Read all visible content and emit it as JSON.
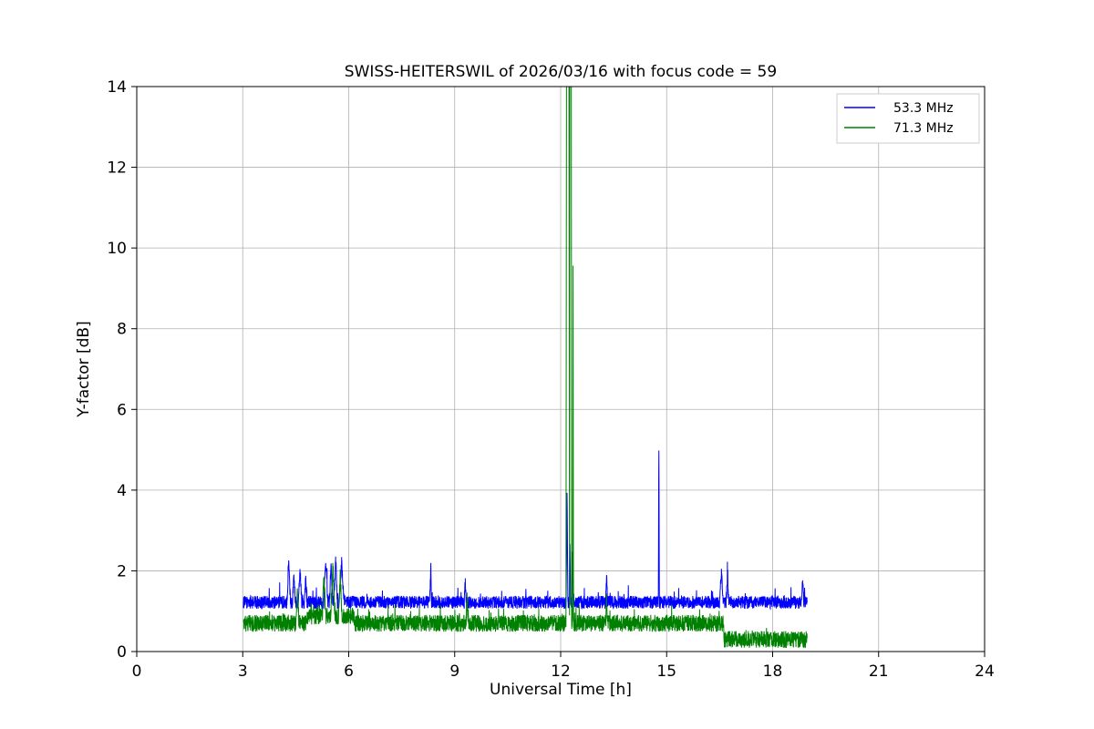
{
  "chart_data": {
    "type": "line",
    "title": "SWISS-HEITERSWIL of 2026/03/16 with focus code = 59",
    "xlabel": "Universal Time [h]",
    "ylabel": "Y-factor [dB]",
    "xlim": [
      0,
      24
    ],
    "ylim": [
      0,
      14
    ],
    "xticks": [
      0,
      3,
      6,
      9,
      12,
      15,
      18,
      21,
      24
    ],
    "yticks": [
      0,
      2,
      4,
      6,
      8,
      10,
      12,
      14
    ],
    "grid": true,
    "legend_position": "upper right",
    "x_data_range": [
      3.02,
      18.98
    ],
    "series": [
      {
        "name": "53.3 MHz",
        "color": "#0000ff",
        "baseline_segments": [
          {
            "from": 3.02,
            "to": 18.98,
            "level": 1.22
          }
        ],
        "noise_amplitude": 0.16,
        "tail_prob": 0.03,
        "tail_amplitude": 0.35,
        "noise_seed": 1234,
        "spikes": [
          [
            4.3,
            2.2,
            0.05
          ],
          [
            4.45,
            1.95,
            0.04
          ],
          [
            4.62,
            2.05,
            0.05
          ],
          [
            4.78,
            1.85,
            0.04
          ],
          [
            5.35,
            2.25,
            0.06
          ],
          [
            5.5,
            2.1,
            0.05
          ],
          [
            5.63,
            2.3,
            0.05
          ],
          [
            5.8,
            2.2,
            0.07
          ],
          [
            8.32,
            2.1,
            0.025
          ],
          [
            9.3,
            1.75,
            0.03
          ],
          [
            12.18,
            3.95,
            0.025
          ],
          [
            12.26,
            2.8,
            0.02
          ],
          [
            12.33,
            2.35,
            0.02
          ],
          [
            13.3,
            1.85,
            0.025
          ],
          [
            14.78,
            5.1,
            0.015
          ],
          [
            16.55,
            1.95,
            0.05
          ],
          [
            16.72,
            1.78,
            0.04
          ],
          [
            18.85,
            1.75,
            0.03
          ]
        ]
      },
      {
        "name": "71.3 MHz",
        "color": "#008000",
        "baseline_segments": [
          {
            "from": 3.02,
            "to": 4.8,
            "level": 0.7
          },
          {
            "from": 4.8,
            "to": 6.15,
            "level": 0.88
          },
          {
            "from": 6.15,
            "to": 16.62,
            "level": 0.7
          },
          {
            "from": 16.62,
            "to": 18.98,
            "level": 0.3
          }
        ],
        "noise_amplitude": 0.21,
        "tail_prob": 0.03,
        "tail_amplitude": 0.3,
        "noise_seed": 9876,
        "spikes": [
          [
            4.55,
            1.55,
            0.04
          ],
          [
            5.3,
            1.9,
            0.05
          ],
          [
            5.55,
            2.05,
            0.06
          ],
          [
            5.76,
            1.85,
            0.05
          ],
          [
            9.35,
            1.3,
            0.03
          ],
          [
            12.2,
            45,
            0.05
          ],
          [
            12.28,
            45,
            0.03
          ],
          [
            12.35,
            9.5,
            0.012
          ],
          [
            13.3,
            1.25,
            0.025
          ]
        ]
      }
    ]
  }
}
